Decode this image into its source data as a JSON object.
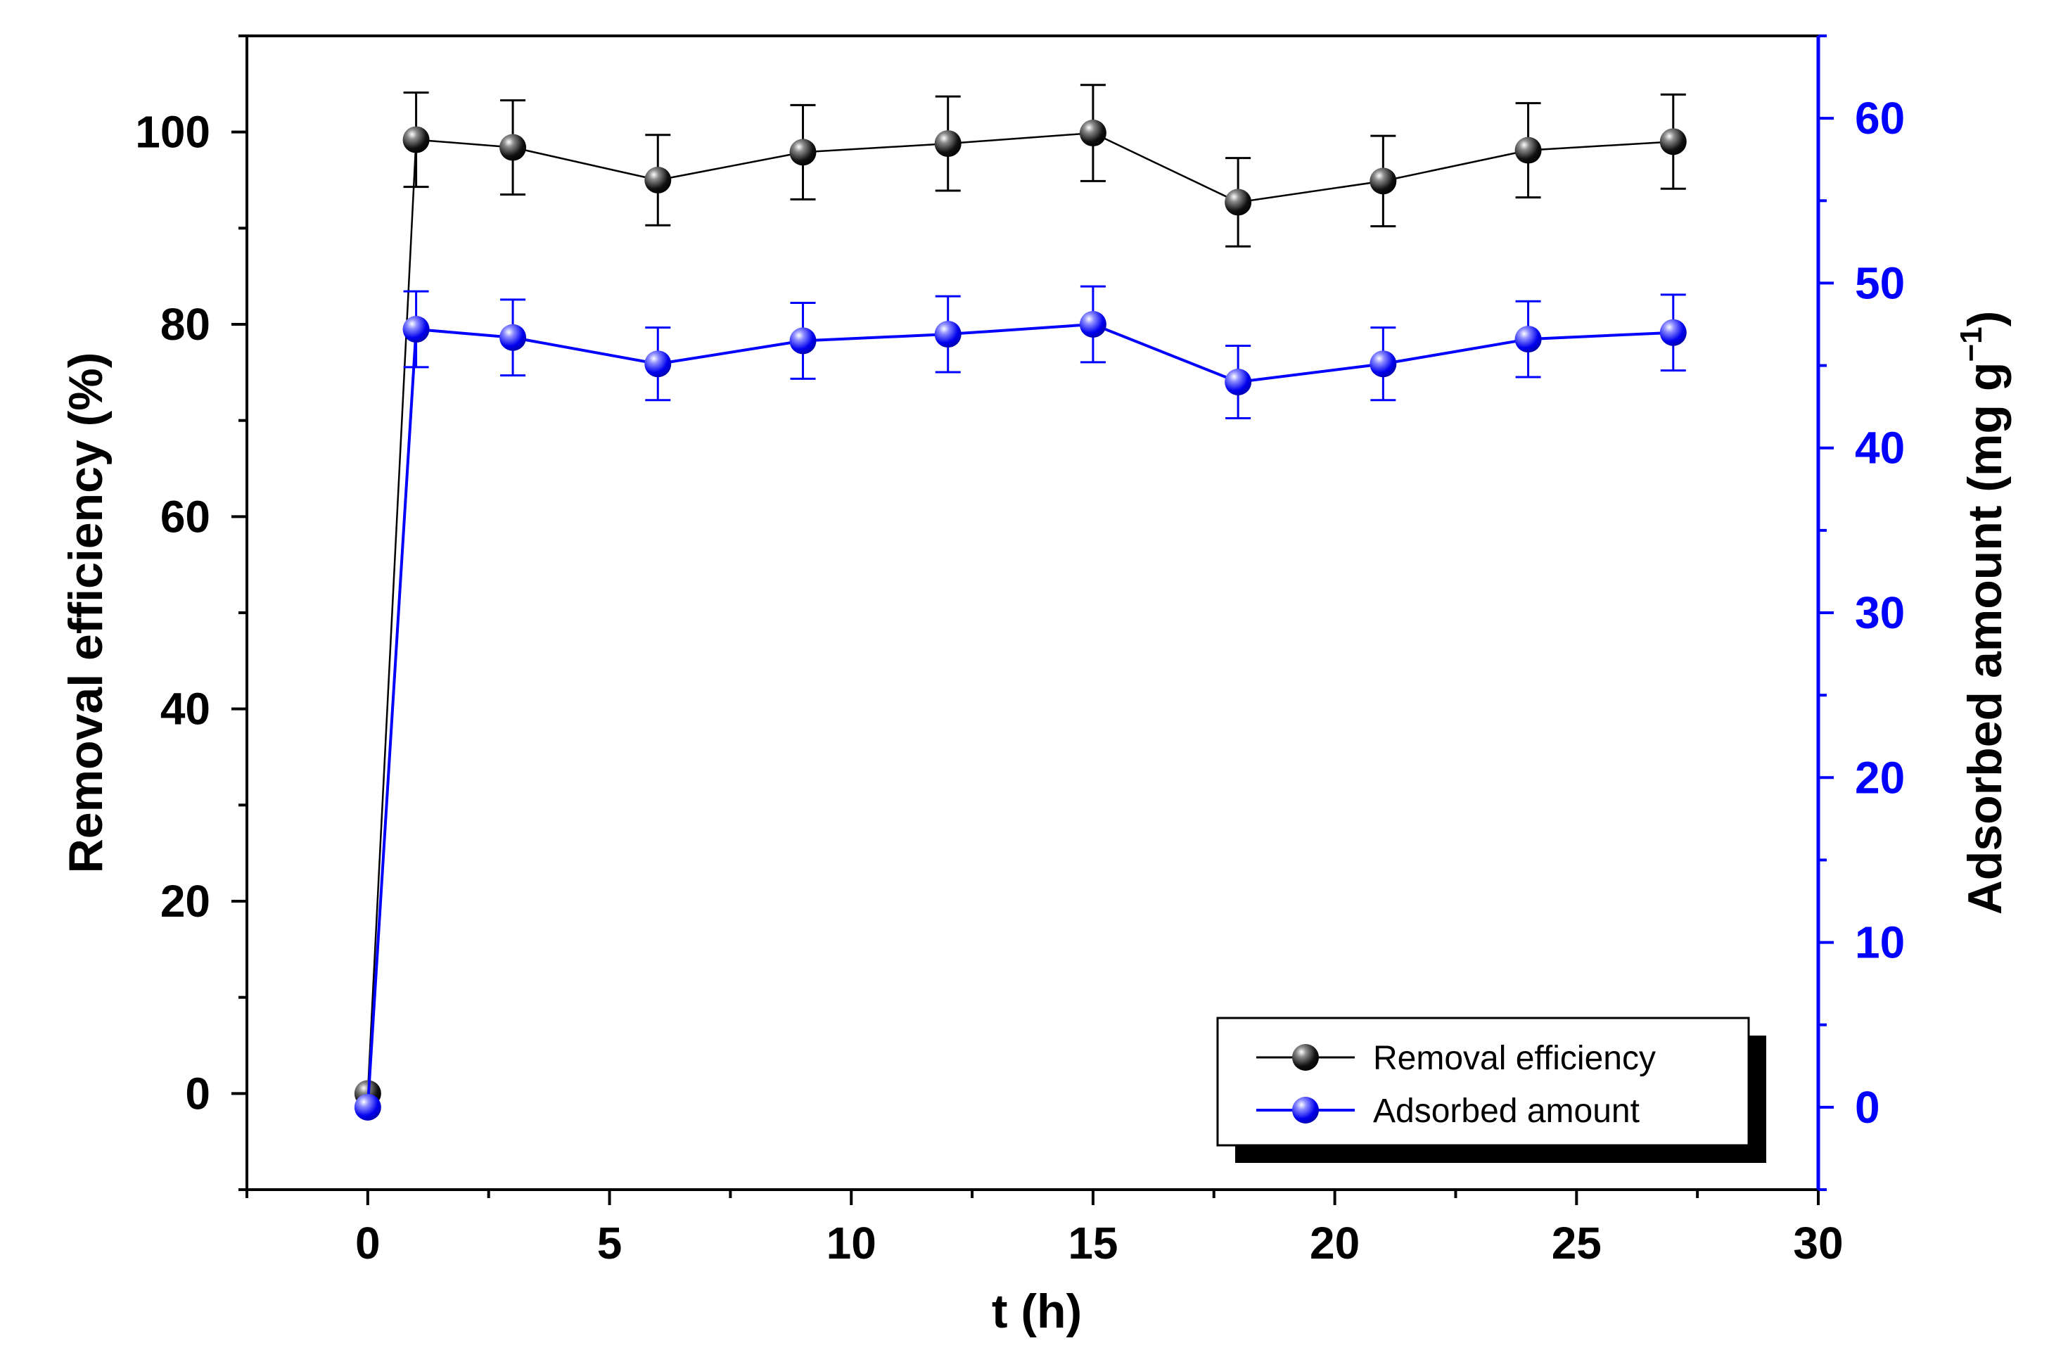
{
  "chart_data": {
    "type": "line",
    "title": "",
    "xlabel": "t (h)",
    "ylabel_left": "Removal efficiency (%)",
    "ylabel_right": "Adsorbed amount (mg g",
    "ylabel_right_sup": "−1",
    "ylabel_right_close": ")",
    "xlim": [
      -2.5,
      30
    ],
    "ylim_left": [
      -10,
      110
    ],
    "ylim_right": [
      -5,
      65
    ],
    "x_ticks": [
      "0",
      "5",
      "10",
      "15",
      "20",
      "25",
      "30"
    ],
    "y_left_ticks": [
      "0",
      "20",
      "40",
      "60",
      "80",
      "100"
    ],
    "y_right_ticks": [
      "0",
      "10",
      "20",
      "30",
      "40",
      "50",
      "60"
    ],
    "x": [
      0,
      1,
      3,
      6,
      9,
      12,
      15,
      18,
      21,
      24,
      27
    ],
    "series": [
      {
        "name": "Removal efficiency",
        "axis": "left",
        "color": "#000000",
        "values": [
          0,
          99.2,
          98.4,
          95.0,
          97.9,
          98.8,
          99.9,
          92.7,
          94.9,
          98.1,
          99.0
        ],
        "errors": [
          0,
          4.9,
          4.9,
          4.7,
          4.9,
          4.9,
          5.0,
          4.6,
          4.7,
          4.9,
          4.9
        ]
      },
      {
        "name": "Adsorbed amount",
        "axis": "right",
        "color": "#0000ff",
        "values": [
          0,
          47.2,
          46.7,
          45.1,
          46.5,
          46.9,
          47.5,
          44.0,
          45.1,
          46.6,
          47.0
        ],
        "errors": [
          0,
          2.3,
          2.3,
          2.2,
          2.3,
          2.3,
          2.3,
          2.2,
          2.2,
          2.3,
          2.3
        ]
      }
    ],
    "legend_position": "bottom-right"
  },
  "colors": {
    "left_axis": "#000000",
    "right_axis": "#0000ff",
    "frame": "#000000"
  }
}
